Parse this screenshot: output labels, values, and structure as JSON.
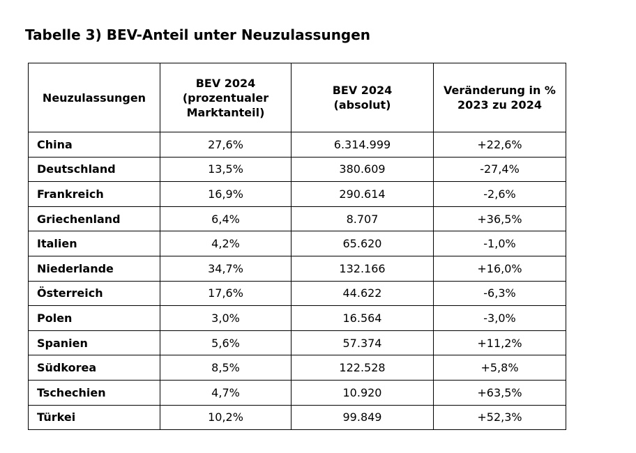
{
  "title": "Tabelle 3) BEV-Anteil unter Neuzulassungen",
  "table": {
    "headers": [
      [
        "Neuzulassungen"
      ],
      [
        "BEV 2024",
        "(prozentualer",
        "Marktanteil)"
      ],
      [
        "BEV 2024",
        "(absolut)"
      ],
      [
        "Veränderung in %",
        "2023 zu 2024"
      ]
    ],
    "rows": [
      {
        "country": "China",
        "share": "27,6%",
        "absolute": "6.314.999",
        "change": "+22,6%"
      },
      {
        "country": "Deutschland",
        "share": "13,5%",
        "absolute": "380.609",
        "change": "-27,4%"
      },
      {
        "country": "Frankreich",
        "share": "16,9%",
        "absolute": "290.614",
        "change": "-2,6%"
      },
      {
        "country": "Griechenland",
        "share": "6,4%",
        "absolute": "8.707",
        "change": "+36,5%"
      },
      {
        "country": "Italien",
        "share": "4,2%",
        "absolute": "65.620",
        "change": "-1,0%"
      },
      {
        "country": "Niederlande",
        "share": "34,7%",
        "absolute": "132.166",
        "change": "+16,0%"
      },
      {
        "country": "Österreich",
        "share": "17,6%",
        "absolute": "44.622",
        "change": "-6,3%"
      },
      {
        "country": "Polen",
        "share": "3,0%",
        "absolute": "16.564",
        "change": "-3,0%"
      },
      {
        "country": "Spanien",
        "share": "5,6%",
        "absolute": "57.374",
        "change": "+11,2%"
      },
      {
        "country": "Südkorea",
        "share": "8,5%",
        "absolute": "122.528",
        "change": "+5,8%"
      },
      {
        "country": "Tschechien",
        "share": "4,7%",
        "absolute": "10.920",
        "change": "+63,5%"
      },
      {
        "country": "Türkei",
        "share": "10,2%",
        "absolute": "99.849",
        "change": "+52,3%"
      }
    ]
  }
}
